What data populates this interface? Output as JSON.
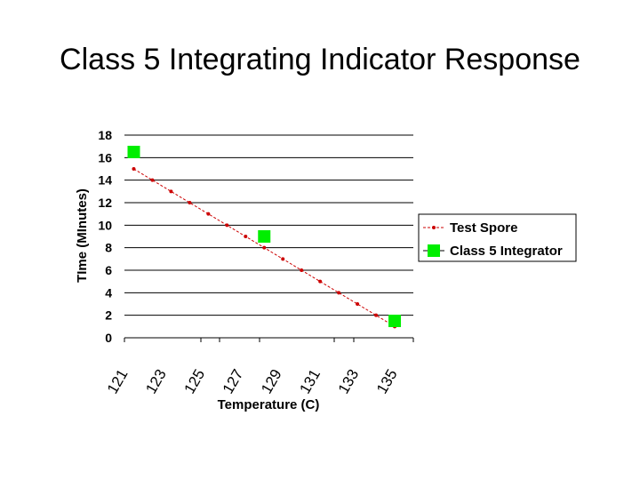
{
  "slide": {
    "title": "Class 5 Integrating Indicator Response"
  },
  "chart_data": {
    "type": "line",
    "title": "",
    "xlabel": "Temperature (C)",
    "ylabel": "TIme (MInutes)",
    "xlim": [
      120.5,
      136
    ],
    "ylim": [
      0,
      18
    ],
    "yticks": [
      0,
      2,
      4,
      6,
      8,
      10,
      12,
      14,
      16,
      18
    ],
    "xticks": [
      "121",
      "123",
      "125",
      "127",
      "129",
      "131",
      "133",
      "135"
    ],
    "grid": "horizontal",
    "legend_position": "right",
    "series": [
      {
        "name": "Test Spore",
        "color": "#cc0000",
        "marker": "dot",
        "x": [
          121,
          122,
          123,
          124,
          125,
          126,
          127,
          128,
          129,
          130,
          131,
          132,
          133,
          134,
          135
        ],
        "y": [
          15,
          14,
          13,
          12,
          11,
          10,
          9,
          8,
          7,
          6,
          5,
          4,
          3,
          2,
          1
        ]
      },
      {
        "name": "Class 5 Integrator",
        "color": "#00ee00",
        "marker": "square",
        "x": [
          121,
          128,
          135
        ],
        "y": [
          16.5,
          9,
          1.5
        ]
      }
    ]
  }
}
